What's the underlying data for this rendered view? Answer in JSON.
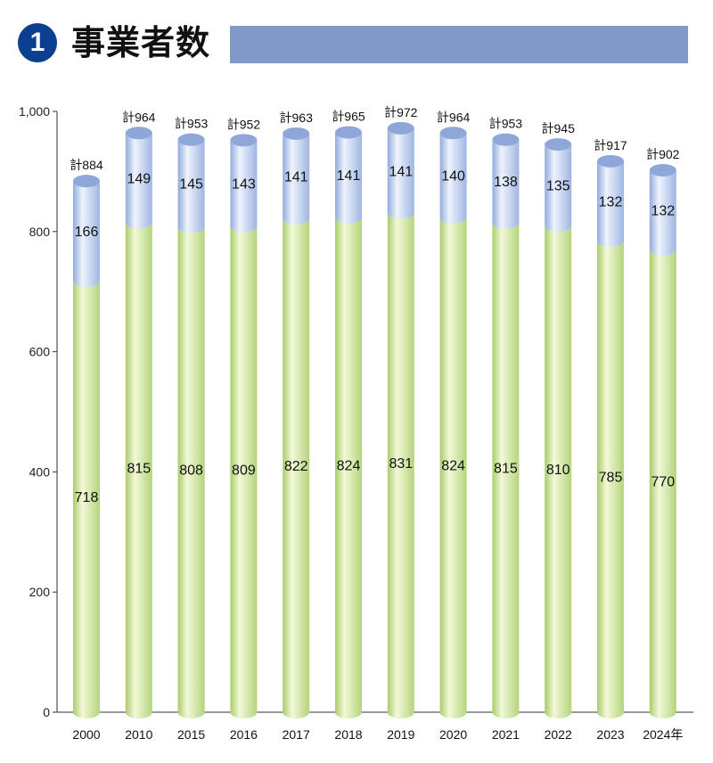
{
  "header": {
    "number": "1",
    "title": "事業者数"
  },
  "colors": {
    "badge": "#0b3f8f",
    "title_bar": "#8099c8",
    "segment_lower": "#c9e19a",
    "segment_upper": "#aec3ea"
  },
  "chart_data": {
    "type": "bar",
    "stacked": true,
    "categories": [
      "2000",
      "2010",
      "2015",
      "2016",
      "2017",
      "2018",
      "2019",
      "2020",
      "2021",
      "2022",
      "2023",
      "2024年"
    ],
    "series": [
      {
        "values": [
          718,
          815,
          808,
          809,
          822,
          824,
          831,
          824,
          815,
          810,
          785,
          770
        ]
      },
      {
        "values": [
          166,
          149,
          145,
          143,
          141,
          141,
          141,
          140,
          138,
          135,
          132,
          132
        ]
      }
    ],
    "totals": [
      "計884",
      "計964",
      "計953",
      "計952",
      "計963",
      "計965",
      "計972",
      "計964",
      "計953",
      "計945",
      "計917",
      "計902"
    ],
    "yticks": [
      "0",
      "200",
      "400",
      "600",
      "800",
      "1,000"
    ],
    "ytick_values": [
      0,
      200,
      400,
      600,
      800,
      1000
    ],
    "ylim": [
      0,
      1000
    ],
    "grid": false
  }
}
